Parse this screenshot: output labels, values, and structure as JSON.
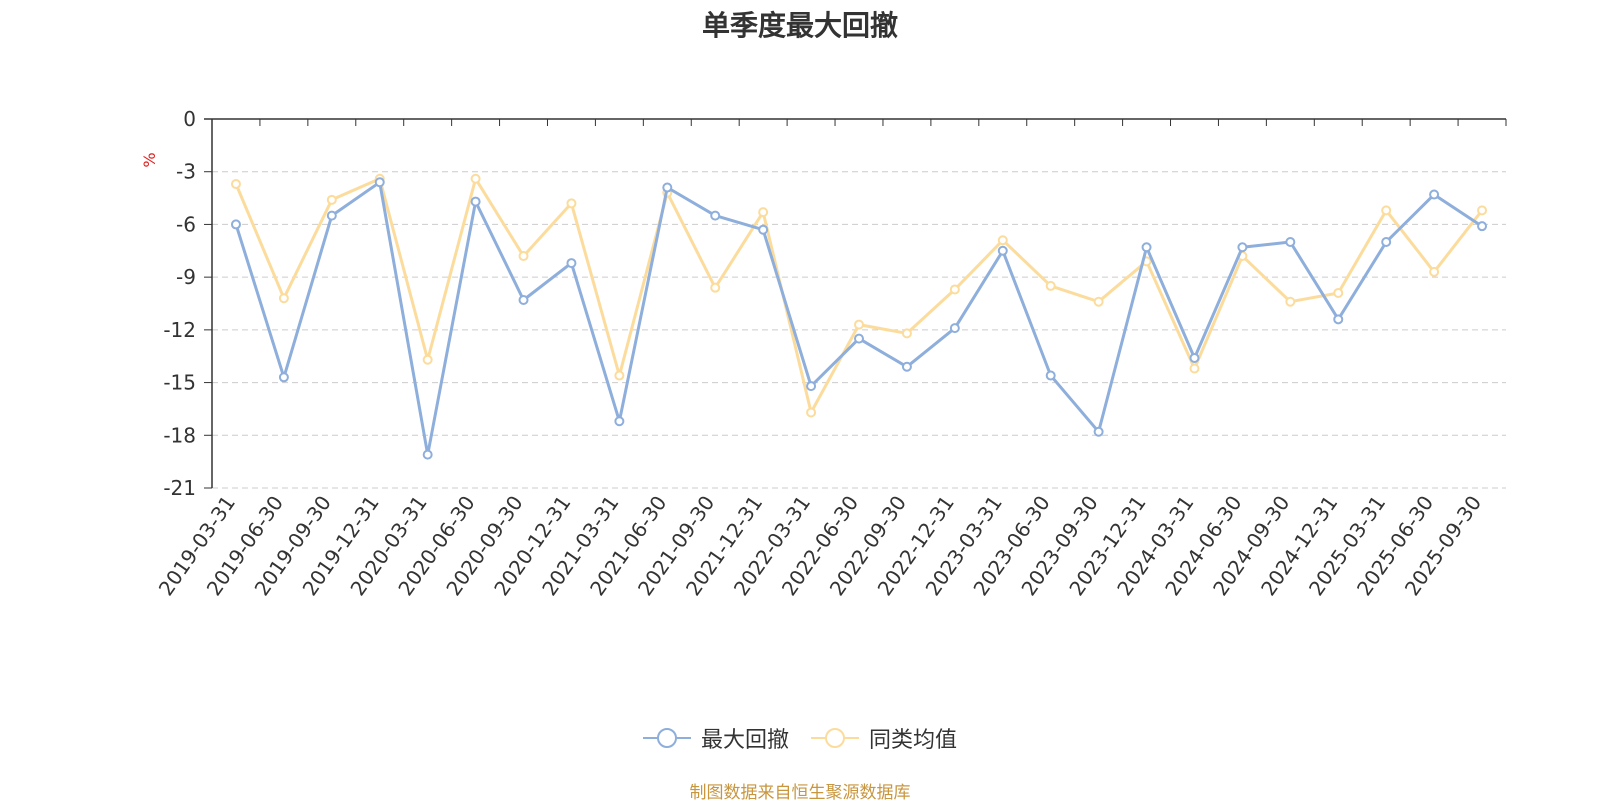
{
  "chart_data": {
    "type": "line",
    "title": "单季度最大回撤",
    "ylabel": "%",
    "xlabel": "",
    "ylim": [
      -21,
      0
    ],
    "yticks": [
      "0",
      "-3",
      "-6",
      "-9",
      "-12",
      "-15",
      "-18",
      "-21"
    ],
    "ytick_values": [
      0,
      -3,
      -6,
      -9,
      -12,
      -15,
      -18,
      -21
    ],
    "grid": "horizontal dashed",
    "legend_position": "bottom-center",
    "categories": [
      "2019-03-31",
      "2019-06-30",
      "2019-09-30",
      "2019-12-31",
      "2020-03-31",
      "2020-06-30",
      "2020-09-30",
      "2020-12-31",
      "2021-03-31",
      "2021-06-30",
      "2021-09-30",
      "2021-12-31",
      "2022-03-31",
      "2022-06-30",
      "2022-09-30",
      "2022-12-31",
      "2023-03-31",
      "2023-06-30",
      "2023-09-30",
      "2023-12-31",
      "2024-03-31",
      "2024-06-30",
      "2024-09-30",
      "2024-12-31",
      "2025-03-31",
      "2025-06-30",
      "2025-09-30"
    ],
    "series": [
      {
        "name": "最大回撤",
        "color": "#8eaedc",
        "values": [
          -6.0,
          -14.7,
          -5.5,
          -3.6,
          -19.1,
          -4.7,
          -10.3,
          -8.2,
          -17.2,
          -3.9,
          -5.5,
          -6.3,
          -15.2,
          -12.5,
          -14.1,
          -11.9,
          -7.5,
          -14.6,
          -17.8,
          -7.3,
          -13.6,
          -7.3,
          -7.0,
          -11.4,
          -7.0,
          -4.3,
          -6.1
        ]
      },
      {
        "name": "同类均值",
        "color": "#fcdc9c",
        "values": [
          -3.7,
          -10.2,
          -4.6,
          -3.4,
          -13.7,
          -3.4,
          -7.8,
          -4.8,
          -14.6,
          -4.2,
          -9.6,
          -5.3,
          -16.7,
          -11.7,
          -12.2,
          -9.7,
          -6.9,
          -9.5,
          -10.4,
          -8.1,
          -14.2,
          -7.8,
          -10.4,
          -9.9,
          -5.2,
          -8.7,
          -5.2
        ]
      }
    ]
  },
  "source_note": "制图数据来自恒生聚源数据库",
  "colors": {
    "axis": "#333333",
    "grid": "#cccccc",
    "ylabel": "#e02020",
    "source_note": "#c8963e"
  }
}
